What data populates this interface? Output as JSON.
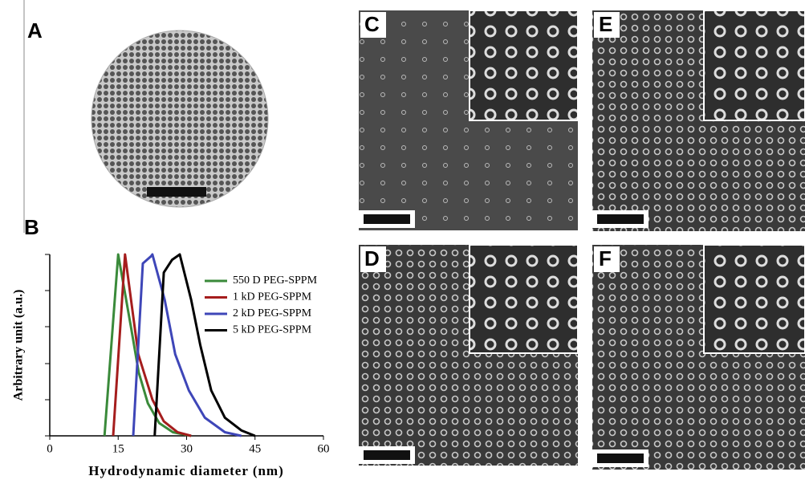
{
  "panels": [
    {
      "label": "A"
    },
    {
      "label": "B"
    },
    {
      "label": "C"
    },
    {
      "label": "D"
    },
    {
      "label": "E"
    },
    {
      "label": "F"
    }
  ],
  "chart_data": {
    "type": "line",
    "xlabel": "Hydrodynamic diameter (nm)",
    "ylabel": "Arbitrary unit (a.u.)",
    "xlim": [
      0,
      60
    ],
    "xticks": [
      0,
      15,
      30,
      45,
      60
    ],
    "ylim": [
      0,
      1
    ],
    "series": [
      {
        "name": "550 D PEG-SPPM",
        "color": "#3a8a3a",
        "x": [
          12,
          15,
          17.8,
          19.5,
          21.5,
          24,
          27,
          31
        ],
        "values": [
          0,
          1,
          0.6,
          0.35,
          0.18,
          0.07,
          0.02,
          0
        ]
      },
      {
        "name": "1 kD PEG-SPPM",
        "color": "#a51d1d",
        "x": [
          13.9,
          16.5,
          19.4,
          22.5,
          25,
          28,
          31
        ],
        "values": [
          0,
          1,
          0.45,
          0.2,
          0.08,
          0.02,
          0
        ]
      },
      {
        "name": "2 kD PEG-SPPM",
        "color": "#3e46b8",
        "x": [
          18.3,
          20.4,
          22.2,
          22.5,
          25.2,
          27.5,
          30.5,
          34,
          38.4,
          42
        ],
        "values": [
          0,
          0.95,
          0.99,
          1,
          0.75,
          0.45,
          0.25,
          0.1,
          0.02,
          0
        ]
      },
      {
        "name": "5 kD PEG-SPPM",
        "color": "#000000",
        "x": [
          23,
          25,
          26.8,
          28.5,
          31,
          33,
          35.4,
          38.4,
          42,
          45
        ],
        "values": [
          0,
          0.9,
          0.97,
          1,
          0.75,
          0.5,
          0.25,
          0.1,
          0.03,
          0
        ]
      }
    ]
  }
}
